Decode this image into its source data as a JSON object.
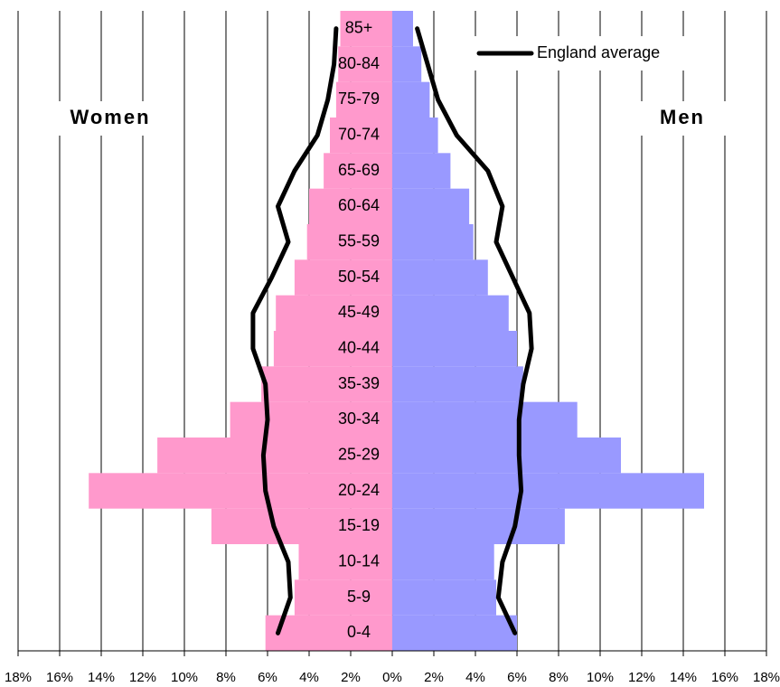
{
  "chart_data": {
    "type": "pyramid",
    "categories": [
      "0-4",
      "5-9",
      "10-14",
      "15-19",
      "20-24",
      "25-29",
      "30-34",
      "35-39",
      "40-44",
      "45-49",
      "50-54",
      "55-59",
      "60-64",
      "65-69",
      "70-74",
      "75-79",
      "80-84",
      "85+"
    ],
    "series": [
      {
        "name": "Women",
        "color": "#ff99cc",
        "side": "left",
        "values": [
          6.1,
          4.7,
          4.5,
          8.7,
          14.6,
          11.3,
          7.8,
          6.3,
          5.7,
          5.6,
          4.7,
          4.1,
          4.0,
          3.3,
          3.0,
          2.7,
          2.6,
          2.5
        ]
      },
      {
        "name": "Men",
        "color": "#9999ff",
        "side": "right",
        "values": [
          6.0,
          5.0,
          4.9,
          8.3,
          15.0,
          11.0,
          8.9,
          6.3,
          6.0,
          5.6,
          4.6,
          3.9,
          3.7,
          2.8,
          2.2,
          1.8,
          1.4,
          1.0
        ]
      }
    ],
    "average": {
      "name": "England average",
      "color": "#000000",
      "left": [
        5.5,
        4.9,
        5.0,
        5.7,
        6.1,
        6.2,
        6.0,
        6.1,
        6.7,
        6.7,
        5.8,
        5.0,
        5.5,
        4.7,
        3.6,
        3.1,
        2.8,
        2.7
      ],
      "right": [
        5.9,
        5.1,
        5.3,
        5.9,
        6.2,
        6.1,
        6.1,
        6.3,
        6.7,
        6.6,
        5.8,
        5.0,
        5.3,
        4.6,
        3.1,
        2.2,
        1.7,
        1.2
      ]
    },
    "xlim": [
      -18,
      18
    ],
    "xticks": [
      {
        "value": -18,
        "label": "18%"
      },
      {
        "value": -16,
        "label": "16%"
      },
      {
        "value": -14,
        "label": "14%"
      },
      {
        "value": -12,
        "label": "12%"
      },
      {
        "value": -10,
        "label": "10%"
      },
      {
        "value": -8,
        "label": "8%"
      },
      {
        "value": -6,
        "label": "6%"
      },
      {
        "value": -4,
        "label": "4%"
      },
      {
        "value": -2,
        "label": "2%"
      },
      {
        "value": 0,
        "label": "0%"
      },
      {
        "value": 2,
        "label": "2%"
      },
      {
        "value": 4,
        "label": "4%"
      },
      {
        "value": 6,
        "label": "6%"
      },
      {
        "value": 8,
        "label": "8%"
      },
      {
        "value": 10,
        "label": "10%"
      },
      {
        "value": 12,
        "label": "12%"
      },
      {
        "value": 14,
        "label": "14%"
      },
      {
        "value": 16,
        "label": "16%"
      },
      {
        "value": 18,
        "label": "18%"
      }
    ],
    "grid": true,
    "legend": "top-right"
  }
}
